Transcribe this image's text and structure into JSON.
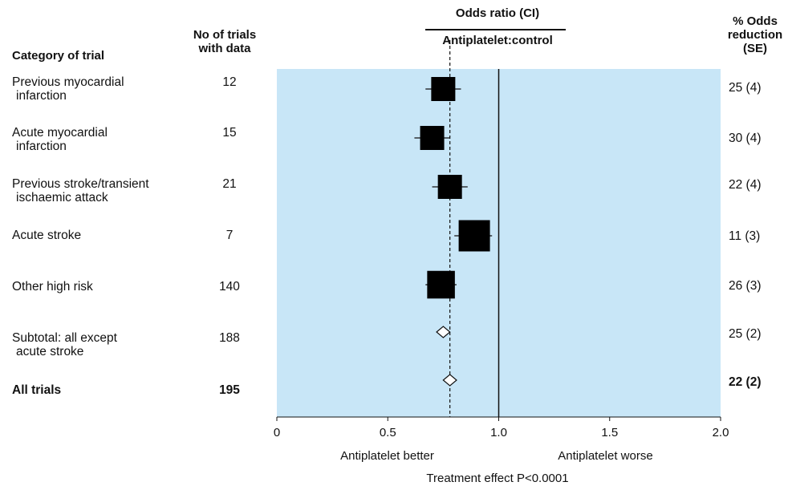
{
  "headers": {
    "category": "Category of trial",
    "trials_line1": "No of trials",
    "trials_line2": "with data",
    "or_title": "Odds ratio (CI)",
    "or_subtitle": "Antiplatelet:control",
    "se_line1": "% Odds",
    "se_line2": "reduction",
    "se_line3": "(SE)"
  },
  "rows": [
    {
      "label1": "Previous myocardial",
      "label2": "infarction",
      "n": "12",
      "reduction": "25 (4)"
    },
    {
      "label1": "Acute myocardial",
      "label2": "infarction",
      "n": "15",
      "reduction": "30 (4)"
    },
    {
      "label1": "Previous stroke/transient",
      "label2": "ischaemic attack",
      "n": "21",
      "reduction": "22 (4)"
    },
    {
      "label1": "Acute stroke",
      "label2": "",
      "n": "7",
      "reduction": "11 (3)"
    },
    {
      "label1": "Other high risk",
      "label2": "",
      "n": "140",
      "reduction": "26 (3)"
    },
    {
      "label1": "Subtotal: all except",
      "label2": "acute stroke",
      "n": "188",
      "reduction": "25 (2)"
    },
    {
      "label1": "All trials",
      "label2": "",
      "n": "195",
      "reduction": "22 (2)"
    }
  ],
  "footer": {
    "better": "Antiplatelet better",
    "worse": "Antiplatelet worse",
    "effect": "Treatment effect P<0.0001"
  },
  "colors": {
    "plot_bg": "#c8e6f7",
    "marker": "#000000"
  },
  "chart_data": {
    "type": "forest",
    "title": "Odds ratio (CI)",
    "subtitle": "Antiplatelet:control",
    "xlim": [
      0,
      2.0
    ],
    "xticks": [
      0,
      0.5,
      1.0,
      1.5,
      2.0
    ],
    "xtick_labels": [
      "0",
      "0.5",
      "1.0",
      "1.5",
      "2.0"
    ],
    "reference_line": 1.0,
    "overall_line": 0.78,
    "points": [
      {
        "category": "Previous myocardial infarction",
        "or": 0.75,
        "ci": [
          0.67,
          0.83
        ],
        "weight": 1.0,
        "marker": "square"
      },
      {
        "category": "Acute myocardial infarction",
        "or": 0.7,
        "ci": [
          0.62,
          0.78
        ],
        "weight": 1.0,
        "marker": "square"
      },
      {
        "category": "Previous stroke/transient ischaemic attack",
        "or": 0.78,
        "ci": [
          0.7,
          0.86
        ],
        "weight": 1.0,
        "marker": "square"
      },
      {
        "category": "Acute stroke",
        "or": 0.89,
        "ci": [
          0.8,
          0.97
        ],
        "weight": 1.3,
        "marker": "square"
      },
      {
        "category": "Other high risk",
        "or": 0.74,
        "ci": [
          0.67,
          0.81
        ],
        "weight": 1.15,
        "marker": "square"
      },
      {
        "category": "Subtotal: all except acute stroke",
        "or": 0.75,
        "ci": [
          0.72,
          0.78
        ],
        "marker": "diamond"
      },
      {
        "category": "All trials",
        "or": 0.78,
        "ci": [
          0.75,
          0.81
        ],
        "marker": "diamond"
      }
    ]
  }
}
